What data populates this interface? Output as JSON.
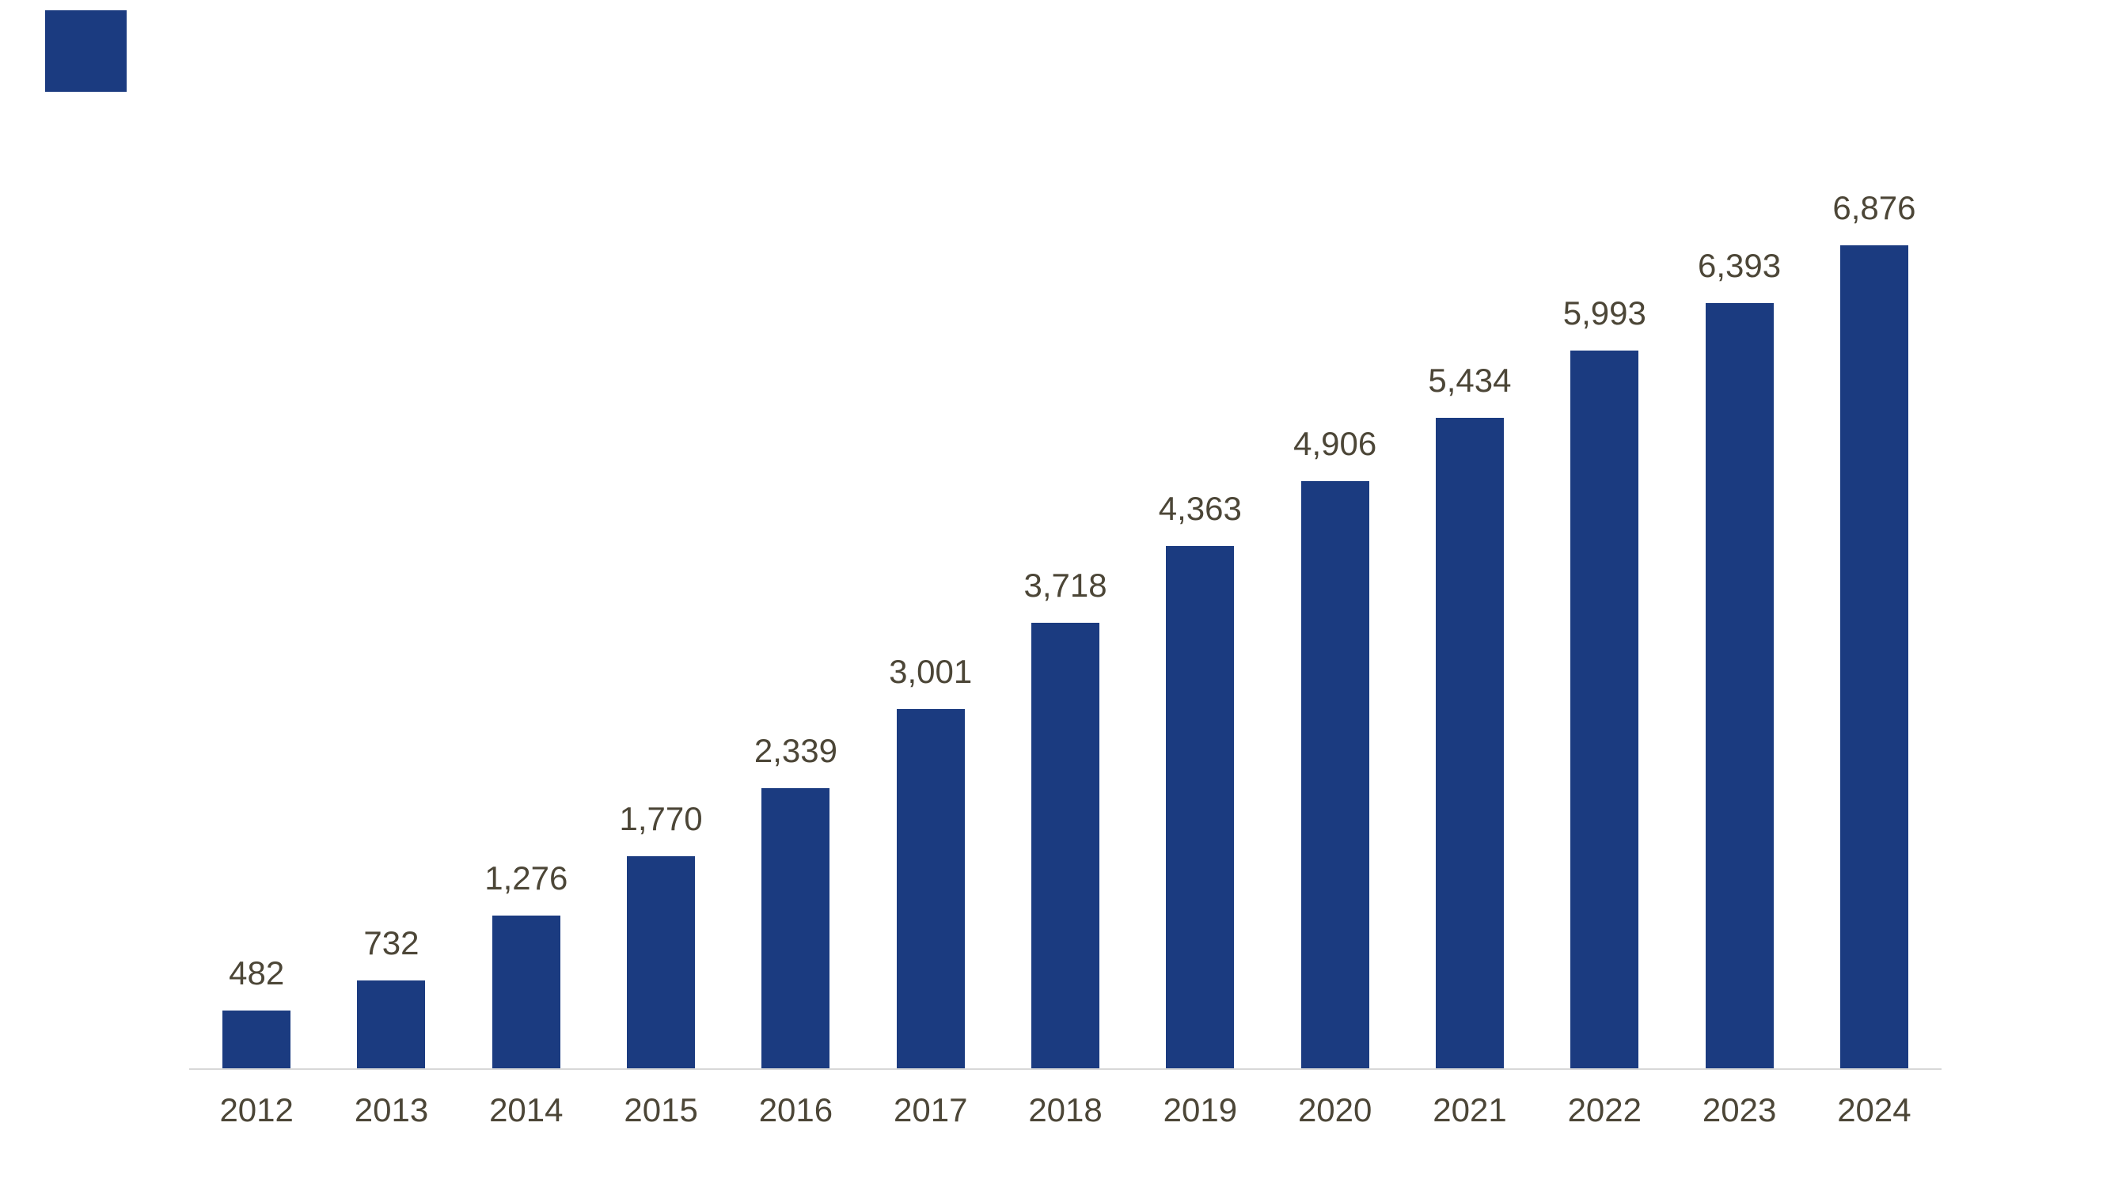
{
  "page": {
    "background": "#FFFFFF"
  },
  "decor": {
    "corner_square_color": "#1B3B80"
  },
  "chart_data": {
    "type": "bar",
    "title": "",
    "xlabel": "",
    "ylabel": "",
    "categories": [
      "2012",
      "2013",
      "2014",
      "2015",
      "2016",
      "2017",
      "2018",
      "2019",
      "2020",
      "2021",
      "2022",
      "2023",
      "2024"
    ],
    "values": [
      482,
      732,
      1276,
      1770,
      2339,
      3001,
      3718,
      4363,
      4906,
      5434,
      5993,
      6393,
      6876
    ],
    "value_labels": [
      "482",
      "732",
      "1,276",
      "1,770",
      "2,339",
      "3,001",
      "3,718",
      "4,363",
      "4,906",
      "5,434",
      "5,993",
      "6,393",
      "6,876"
    ],
    "ylim": [
      0,
      7000
    ],
    "grid": false,
    "legend_position": "none",
    "bar_color": "#1B3B80",
    "label_color": "#4C4637",
    "axis_line_color": "#D8D8D8"
  }
}
